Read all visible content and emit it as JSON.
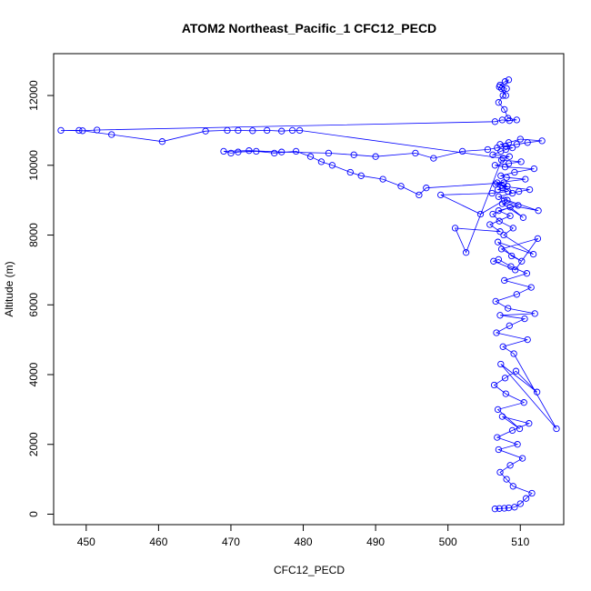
{
  "chart_data": {
    "type": "line",
    "title": "ATOM2 Northeast_Pacific_1 CFC12_PECD",
    "xlabel": "CFC12_PECD",
    "ylabel": "Altitude (m)",
    "xlim": [
      445.5,
      516
    ],
    "ylim": [
      -300,
      13200
    ],
    "xticks": [
      450,
      460,
      470,
      480,
      490,
      500,
      510
    ],
    "yticks": [
      0,
      2000,
      4000,
      6000,
      8000,
      10000,
      12000
    ],
    "grid": false,
    "markers": "open-circle",
    "series": [
      {
        "name": "",
        "color": "#0000ff",
        "x": [
          506.5,
          507.1,
          507.8,
          508.4,
          509.2,
          510.0,
          510.8,
          511.6,
          509.0,
          508.1,
          507.2,
          508.6,
          510.3,
          507.0,
          509.6,
          506.8,
          508.9,
          511.2,
          507.5,
          509.9,
          506.9,
          510.5,
          508.0,
          506.4,
          507.9,
          509.4,
          512.3,
          507.3,
          515.0,
          509.1,
          507.6,
          511.0,
          506.7,
          508.5,
          510.6,
          507.2,
          512.0,
          508.3,
          506.6,
          509.5,
          511.5,
          507.8,
          510.9,
          508.7,
          507.0,
          506.3,
          509.3,
          512.4,
          507.4,
          510.2,
          508.8,
          506.9,
          511.8,
          507.7,
          509.0,
          507.1,
          506.2,
          508.6,
          510.4,
          507.5,
          512.5,
          508.2,
          507.0,
          509.8,
          511.3,
          507.6,
          508.9,
          506.8,
          510.7,
          508.1,
          507.3,
          509.2,
          511.9,
          507.9,
          506.5,
          508.4,
          510.1,
          507.4,
          502.5,
          501.0,
          507.2,
          505.8,
          508.6,
          507.0,
          509.7,
          507.8,
          504.5,
          499.0,
          506.1,
          508.3,
          506.9,
          507.5,
          508.2,
          506.6,
          507.7,
          497.0,
          496.0,
          493.5,
          491.0,
          488.0,
          486.5,
          484.0,
          482.5,
          481.0,
          479.0,
          476.0,
          473.5,
          471.0,
          470.0,
          469.0,
          472.5,
          477.0,
          483.5,
          487.0,
          490.0,
          495.5,
          498.0,
          502.0,
          505.5,
          506.8,
          508.0,
          509.5,
          511.0,
          513.0,
          510.0,
          508.4,
          507.2,
          508.9,
          508.0,
          507.3,
          506.2,
          508.5,
          507.6,
          479.5,
          478.5,
          477.0,
          475.0,
          473.0,
          471.0,
          469.5,
          466.5,
          460.5,
          453.5,
          449.0,
          446.5,
          449.5,
          451.5,
          506.5,
          507.5,
          508.5,
          509.5,
          508.3,
          507.8,
          507.0,
          507.6,
          508.1,
          507.2,
          507.9,
          508.4,
          507.4,
          508.0,
          507.1
        ],
        "y": [
          150,
          160,
          170,
          180,
          200,
          300,
          450,
          600,
          800,
          1000,
          1200,
          1400,
          1600,
          1850,
          2000,
          2200,
          2400,
          2600,
          2800,
          2450,
          3000,
          3200,
          3450,
          3700,
          3900,
          4100,
          3500,
          4300,
          2450,
          4600,
          4800,
          5000,
          5200,
          5400,
          5600,
          5700,
          5750,
          5900,
          6100,
          6300,
          6500,
          6700,
          6900,
          7100,
          7300,
          7250,
          7000,
          7900,
          7600,
          7250,
          7400,
          7800,
          7450,
          8000,
          8200,
          8400,
          8600,
          8800,
          8500,
          8900,
          8700,
          9000,
          9100,
          9250,
          9300,
          9400,
          9200,
          9500,
          9600,
          9650,
          9700,
          9800,
          9900,
          9950,
          10000,
          10050,
          10100,
          10150,
          7500,
          8200,
          8100,
          8300,
          8550,
          8700,
          8850,
          9000,
          8600,
          9150,
          9200,
          9250,
          9300,
          9350,
          9400,
          9450,
          9500,
          9350,
          9150,
          9400,
          9600,
          9700,
          9800,
          10000,
          10100,
          10250,
          10400,
          10350,
          10400,
          10380,
          10350,
          10400,
          10420,
          10380,
          10350,
          10300,
          10250,
          10350,
          10200,
          10400,
          10450,
          10500,
          10550,
          10600,
          10650,
          10700,
          10750,
          10650,
          10600,
          10500,
          10450,
          10400,
          10300,
          10250,
          10200,
          11000,
          11000,
          10980,
          11000,
          10990,
          11000,
          11000,
          10980,
          10680,
          10880,
          11000,
          11000,
          10990,
          11010,
          11250,
          11300,
          11280,
          11300,
          11350,
          11600,
          11800,
          12000,
          12200,
          12300,
          12400,
          12450,
          12200,
          12000,
          12250
        ]
      }
    ]
  }
}
